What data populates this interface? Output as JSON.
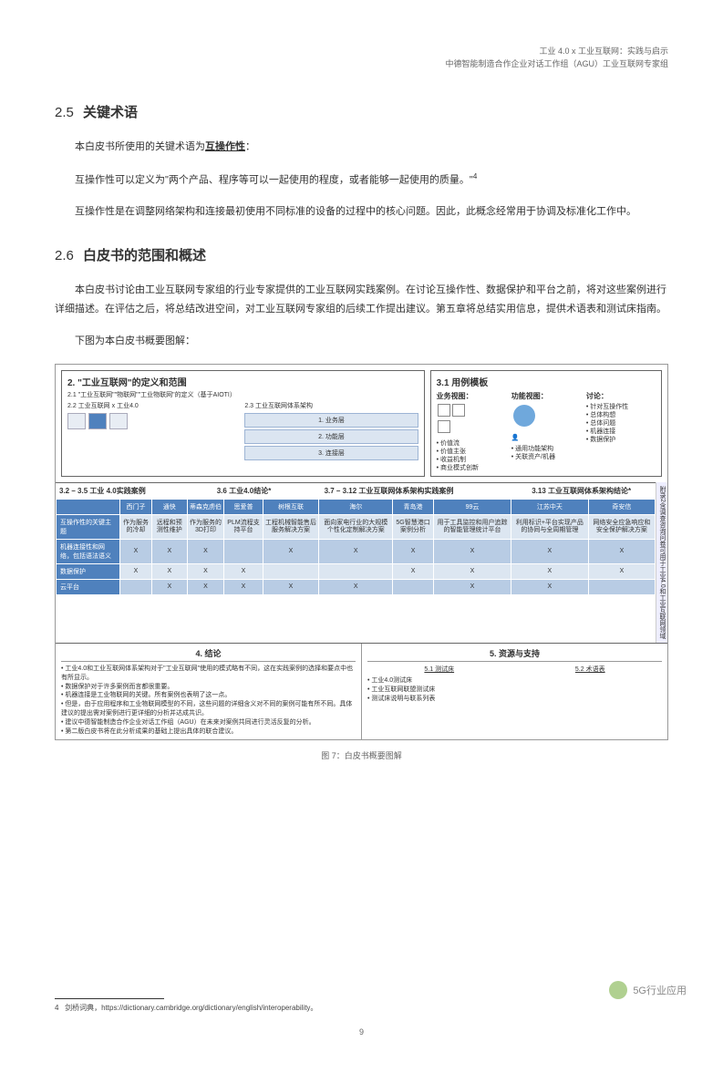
{
  "header": {
    "line1": "工业 4.0 x 工业互联网：实践与启示",
    "line2": "中德智能制造合作企业对话工作组（AGU）工业互联网专家组"
  },
  "s25": {
    "num": "2.5",
    "title": "关键术语",
    "p1a": "本白皮书所使用的关键术语为",
    "p1b": "互操作性",
    "p1c": "：",
    "p2": "互操作性可以定义为\"两个产品、程序等可以一起使用的程度，或者能够一起使用的质量。\"",
    "f4": "4",
    "p3": "互操作性是在调整网络架构和连接最初使用不同标准的设备的过程中的核心问题。因此，此概念经常用于协调及标准化工作中。"
  },
  "s26": {
    "num": "2.6",
    "title": "白皮书的范围和概述",
    "p1": "本白皮书讨论由工业互联网专家组的行业专家提供的工业互联网实践案例。在讨论互操作性、数据保护和平台之前，将对这些案例进行详细描述。在评估之后，将总结改进空间，对工业互联网专家组的后续工作提出建议。第五章将总结实用信息，提供术语表和测试床指南。",
    "p2": "下图为本白皮书概要图解："
  },
  "box2": {
    "title": "2. \"工业互联网\"的定义和范围",
    "s21": "2.1 \"工业互联网\"\"物联网\"\"工业物联网\"的定义（基于AIOTI）",
    "s22": "2.2 工业互联网 x 工业4.0",
    "s23": "2.3 工业互联网体系架构",
    "l1": "1. 业务层",
    "l2": "2. 功能层",
    "l3": "3. 连接层"
  },
  "box3": {
    "title": "3.1 用例模板",
    "h1": "业务视图：",
    "h2": "功能视图：",
    "h3": "讨论：",
    "b1": "价值流",
    "b2": "价值主张",
    "b3": "收益机制",
    "b4": "商业模式创新",
    "f1": "通用功能架构",
    "f2": "关联资产/机器",
    "d1": "针对互操作性",
    "d2": "总体构想",
    "d3": "总体问题",
    "d4": "机器连接",
    "d5": "数据保护"
  },
  "matrix": {
    "h1": "3.2 – 3.5 工业 4.0实践案例",
    "h2": "3.6 工业4.0结论*",
    "h3": "3.7 – 3.12 工业互联网体系架构实践案例",
    "h4": "3.13 工业互联网体系架构结论*",
    "companies": [
      "西门子",
      "通快",
      "蒂森克虏伯",
      "思爱普",
      "树根互联",
      "海尔",
      "青岛港",
      "99云",
      "江苏中天",
      "奇安信"
    ],
    "rows": [
      {
        "label": "互操作性的关键主题",
        "cells": [
          "作为服务的冷却",
          "远程和预测性维护",
          "作为服务的3D打印",
          "PLM流程支持平台",
          "工程机械智能售后服务解决方案",
          "面向家电行业的大规模个性化定制解决方案",
          "5G智慧港口案例分析",
          "用于工具监控和用户追踪的智能管理统计平台",
          "利用标识+平台实现产品的协同与全周期管理",
          "网络安全应急响应和安全保护解决方案"
        ]
      },
      {
        "label": "机器连接性和网络，包括语法语义",
        "cells": [
          "X",
          "X",
          "X",
          "",
          "X",
          "X",
          "X",
          "X",
          "X",
          "X"
        ]
      },
      {
        "label": "数据保护",
        "cells": [
          "X",
          "X",
          "X",
          "X",
          "",
          "",
          "X",
          "X",
          "X",
          "X"
        ]
      },
      {
        "label": "云平台",
        "cells": [
          "",
          "X",
          "X",
          "X",
          "X",
          "X",
          "",
          "X",
          "X",
          ""
        ]
      }
    ],
    "side": "附录2含调查咨询问卷可用于工业4.0和工业互联网领域"
  },
  "bottom": {
    "h4": "4. 结论",
    "h5": "5. 资源与支持",
    "list4": [
      "工业4.0和工业互联网体系架构对于\"工业互联网\"使用的模式略有不同，这在实践案例的选择和要点中也有所显示。",
      "数据保护对于许多案例而言都很重要。",
      "机器连接是工业物联网的关键。所有案例也表明了这一点。",
      "但是，由于应用程序和工业物联网模型的不同，这些问题的详细含义对不同的案例可能有所不同。具体建议的提出需对案例进行更详细的分析并达成共识。",
      "建议中德智能制造合作企业对话工作组（AGU）在未来对案例共同进行灵活反复的分析。",
      "第二版白皮书将在此分析成果的基础上提出具体的联合建议。"
    ],
    "sh51": "5.1 测试床",
    "sh52": "5.2 术语表",
    "list51": [
      "工业4.0测试床",
      "工业互联网联盟测试床",
      "测试床说明与联系列表"
    ]
  },
  "caption": "图 7：白皮书概要图解",
  "footnote": {
    "num": "4",
    "text": "剑桥词典，https://dictionary.cambridge.org/dictionary/english/interoperability。"
  },
  "pagenum": "9",
  "watermark": "5G行业应用"
}
